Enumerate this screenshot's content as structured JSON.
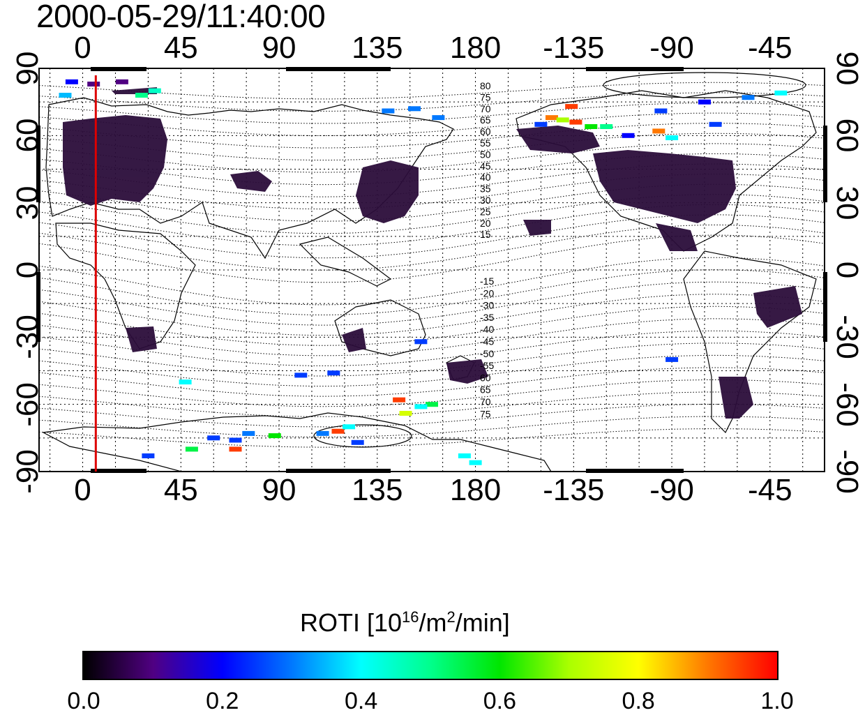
{
  "title": "2000-05-29/11:40:00",
  "top_axis": {
    "ticks": [
      "0",
      "45",
      "90",
      "135",
      "180",
      "-135",
      "-90",
      "-45"
    ]
  },
  "bottom_axis": {
    "ticks": [
      "0",
      "45",
      "90",
      "135",
      "180",
      "-135",
      "-90",
      "-45"
    ]
  },
  "left_axis": {
    "ticks": [
      "90",
      "60",
      "30",
      "0",
      "-30",
      "-60",
      "-90"
    ]
  },
  "right_axis": {
    "ticks": [
      "90",
      "60",
      "30",
      "0",
      "-30",
      "-60",
      "-90"
    ]
  },
  "contour_labels": {
    "north": [
      "80",
      "75",
      "70",
      "65",
      "60",
      "55",
      "50",
      "45",
      "40",
      "35",
      "30",
      "25",
      "20",
      "15"
    ],
    "south": [
      "-15",
      "-20",
      "-30",
      "-35",
      "-40",
      "-45",
      "-50",
      "-55",
      "60",
      "65",
      "70",
      "75"
    ]
  },
  "colorbar": {
    "title_prefix": "ROTI  [10",
    "title_sup1": "16",
    "title_mid": "/m",
    "title_sup2": "2",
    "title_suffix": "/min]",
    "ticks": [
      "0.0",
      "0.2",
      "0.4",
      "0.6",
      "0.8",
      "1.0"
    ],
    "range": [
      0.0,
      1.0
    ]
  },
  "map_extent": {
    "lon_start": -20,
    "lon_end": 340,
    "lat_min": -90,
    "lat_max": 90
  },
  "marker_longitude": 6,
  "colors": {
    "marker_line": "#dd0000",
    "low_activity": "#2b0d3a"
  },
  "roti_points": [
    {
      "lon": -5,
      "lat": 84,
      "v": 0.2
    },
    {
      "lon": 5,
      "lat": 83,
      "v": 0.1
    },
    {
      "lon": 18,
      "lat": 84,
      "v": 0.1
    },
    {
      "lon": -8,
      "lat": 78,
      "v": 0.35
    },
    {
      "lon": 27,
      "lat": 78,
      "v": 0.5
    },
    {
      "lon": 33,
      "lat": 80,
      "v": 0.45
    },
    {
      "lon": 140,
      "lat": 71,
      "v": 0.3
    },
    {
      "lon": 152,
      "lat": 72,
      "v": 0.3
    },
    {
      "lon": 163,
      "lat": 68,
      "v": 0.3
    },
    {
      "lon": 215,
      "lat": 68,
      "v": 0.9
    },
    {
      "lon": 220,
      "lat": 67,
      "v": 0.7
    },
    {
      "lon": 226,
      "lat": 66,
      "v": 0.95
    },
    {
      "lon": 233,
      "lat": 64,
      "v": 0.6
    },
    {
      "lon": 240,
      "lat": 64,
      "v": 0.5
    },
    {
      "lon": 210,
      "lat": 65,
      "v": 0.25
    },
    {
      "lon": 250,
      "lat": 60,
      "v": 0.2
    },
    {
      "lon": 264,
      "lat": 62,
      "v": 0.9
    },
    {
      "lon": 270,
      "lat": 59,
      "v": 0.4
    },
    {
      "lon": 290,
      "lat": 65,
      "v": 0.25
    },
    {
      "lon": 305,
      "lat": 77,
      "v": 0.3
    },
    {
      "lon": 320,
      "lat": 79,
      "v": 0.4
    },
    {
      "lon": 265,
      "lat": 71,
      "v": 0.25
    },
    {
      "lon": 285,
      "lat": 75,
      "v": 0.2
    },
    {
      "lon": 224,
      "lat": 73,
      "v": 0.95
    },
    {
      "lon": 47,
      "lat": -50,
      "v": 0.4
    },
    {
      "lon": 76,
      "lat": -73,
      "v": 0.3
    },
    {
      "lon": 88,
      "lat": -74,
      "v": 0.6
    },
    {
      "lon": 60,
      "lat": -75,
      "v": 0.25
    },
    {
      "lon": 70,
      "lat": -76,
      "v": 0.25
    },
    {
      "lon": 50,
      "lat": -80,
      "v": 0.55
    },
    {
      "lon": 70,
      "lat": -80,
      "v": 0.95
    },
    {
      "lon": 30,
      "lat": -83,
      "v": 0.25
    },
    {
      "lon": 110,
      "lat": -73,
      "v": 0.3
    },
    {
      "lon": 117,
      "lat": -72,
      "v": 0.95
    },
    {
      "lon": 122,
      "lat": -70,
      "v": 0.4
    },
    {
      "lon": 126,
      "lat": -77,
      "v": 0.25
    },
    {
      "lon": 145,
      "lat": -58,
      "v": 0.95
    },
    {
      "lon": 148,
      "lat": -64,
      "v": 0.75
    },
    {
      "lon": 160,
      "lat": -60,
      "v": 0.55
    },
    {
      "lon": 155,
      "lat": -61,
      "v": 0.4
    },
    {
      "lon": 180,
      "lat": -86,
      "v": 0.4
    },
    {
      "lon": 175,
      "lat": -83,
      "v": 0.4
    },
    {
      "lon": 270,
      "lat": -40,
      "v": 0.25
    },
    {
      "lon": 115,
      "lat": -46,
      "v": 0.25
    },
    {
      "lon": 155,
      "lat": -32,
      "v": 0.25
    },
    {
      "lon": 100,
      "lat": -47,
      "v": 0.25
    }
  ]
}
